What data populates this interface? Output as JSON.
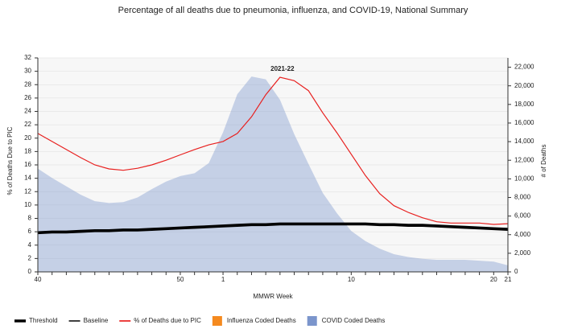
{
  "chart_data": {
    "type": "line",
    "title": "Percentage of all deaths due to pneumonia, influenza, and COVID-19, National Summary",
    "annotation": "2021-22",
    "x_label": "MMWR Week",
    "y_label": "% of Deaths Due to PIC",
    "y2_label": "# of Deaths",
    "categories": [
      "40",
      null,
      null,
      null,
      null,
      null,
      null,
      null,
      null,
      null,
      "50",
      null,
      null,
      "1",
      null,
      null,
      null,
      null,
      null,
      null,
      null,
      null,
      "10",
      null,
      null,
      null,
      null,
      null,
      null,
      null,
      null,
      null,
      "20",
      "21"
    ],
    "ylim": [
      0,
      32
    ],
    "yticks": [
      0,
      2,
      4,
      6,
      8,
      10,
      12,
      14,
      16,
      18,
      20,
      22,
      24,
      26,
      28,
      30,
      32
    ],
    "y2lim": [
      0,
      23000
    ],
    "y2ticks": [
      0,
      {
        "value": 2000,
        "label": "2,000"
      },
      {
        "value": 4000,
        "label": "4,000"
      },
      {
        "value": 6000,
        "label": "6,000"
      },
      {
        "value": 8000,
        "label": "8,000"
      },
      {
        "value": 10000,
        "label": "10,000"
      },
      {
        "value": 12000,
        "label": "12,000"
      },
      {
        "value": 14000,
        "label": "14,000"
      },
      {
        "value": 16000,
        "label": "16,000"
      },
      {
        "value": 18000,
        "label": "18,000"
      },
      {
        "value": 20000,
        "label": "20,000"
      },
      {
        "value": 22000,
        "label": "22,000"
      }
    ],
    "grid": true,
    "legend": "bottom",
    "series": [
      {
        "name": "Threshold",
        "kind": "line",
        "color": "#000000",
        "line_width": 3,
        "values": [
          5.9,
          6.0,
          6.0,
          6.1,
          6.2,
          6.2,
          6.3,
          6.3,
          6.4,
          6.5,
          6.6,
          6.7,
          6.8,
          6.9,
          7.0,
          7.1,
          7.1,
          7.2,
          7.2,
          7.2,
          7.2,
          7.2,
          7.2,
          7.2,
          7.1,
          7.1,
          7.0,
          7.0,
          6.9,
          6.8,
          6.7,
          6.6,
          6.5,
          6.4
        ]
      },
      {
        "name": "Baseline",
        "kind": "line",
        "color": "#000000",
        "line_width": 1,
        "values": [
          5.7,
          5.8,
          5.8,
          5.9,
          6.0,
          6.0,
          6.1,
          6.1,
          6.2,
          6.3,
          6.4,
          6.5,
          6.6,
          6.7,
          6.8,
          6.9,
          6.9,
          7.0,
          7.0,
          7.0,
          7.0,
          7.0,
          7.0,
          7.0,
          6.9,
          6.9,
          6.8,
          6.8,
          6.7,
          6.6,
          6.5,
          6.4,
          6.3,
          6.2
        ]
      },
      {
        "name": "% of Deaths due to PIC",
        "kind": "line",
        "color": "#e8201f",
        "line_width": 1.2,
        "values": [
          20.7,
          19.5,
          18.3,
          17.1,
          16.0,
          15.4,
          15.2,
          15.5,
          16.0,
          16.7,
          17.5,
          18.3,
          19.0,
          19.5,
          20.7,
          23.2,
          26.5,
          29.1,
          28.6,
          27.1,
          23.8,
          20.8,
          17.6,
          14.4,
          11.7,
          9.9,
          8.9,
          8.1,
          7.5,
          7.3,
          7.3,
          7.3,
          7.1,
          7.2
        ]
      },
      {
        "name": "Influenza Coded Deaths",
        "kind": "area",
        "axis": "y2",
        "color": "#f58a1f",
        "values": [
          10,
          10,
          10,
          10,
          10,
          10,
          10,
          15,
          15,
          20,
          20,
          25,
          30,
          30,
          30,
          30,
          30,
          30,
          30,
          30,
          25,
          25,
          20,
          20,
          20,
          15,
          15,
          15,
          15,
          15,
          10,
          10,
          10,
          10
        ]
      },
      {
        "name": "COVID Coded Deaths",
        "kind": "area",
        "axis": "y2",
        "color": "#7b95cc",
        "values": [
          11100,
          10100,
          9200,
          8300,
          7600,
          7400,
          7500,
          8000,
          8900,
          9700,
          10300,
          10600,
          11700,
          15000,
          19100,
          21000,
          20700,
          18500,
          14800,
          11600,
          8500,
          6300,
          4400,
          3300,
          2500,
          1900,
          1600,
          1400,
          1300,
          1300,
          1300,
          1200,
          1100,
          700
        ]
      }
    ]
  }
}
